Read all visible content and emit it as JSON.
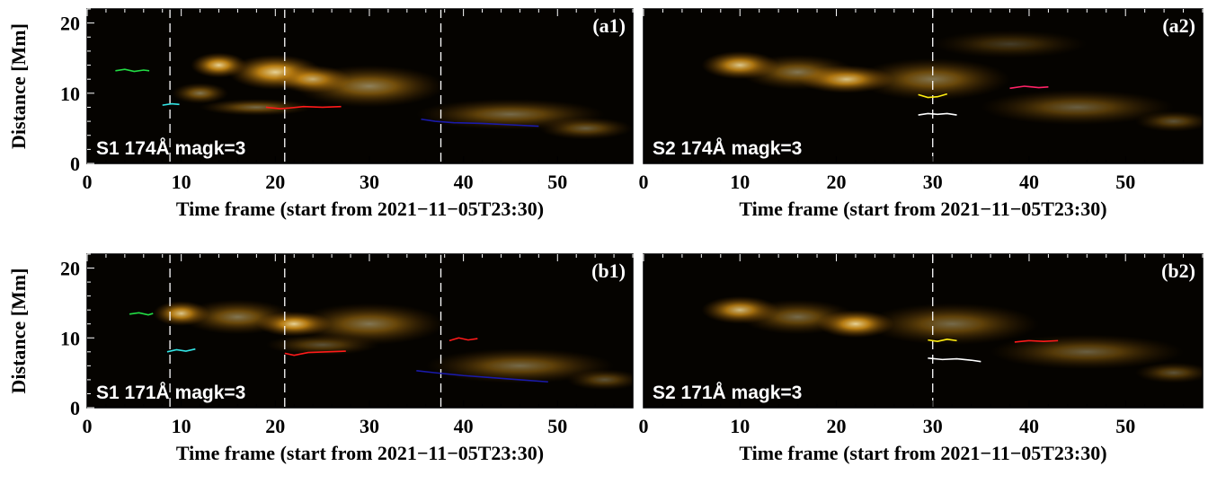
{
  "figure": {
    "ylabel": "Distance [Mm]",
    "xlabel": "Time frame (start from 2021−11−05T23:30)"
  },
  "colors": {
    "green": "#22dd44",
    "cyan": "#33e6e6",
    "red": "#ff1a1a",
    "blue": "#1a1aaa",
    "yellow": "#ffee11",
    "white": "#ffffff",
    "magenta": "#ff2266"
  },
  "chart_data": [
    {
      "type": "heatmap",
      "panel": "(a1)",
      "caption": "S1 174Å magk=3",
      "xlabel": "Time frame (start from 2021−11−05T23:30)",
      "ylabel": "Distance [Mm]",
      "xlim": [
        0,
        58
      ],
      "ylim": [
        0,
        22
      ],
      "xticks": [
        "0",
        "10",
        "20",
        "30",
        "40",
        "50"
      ],
      "yticks": [
        "0",
        "10",
        "20"
      ],
      "vlines": [
        8.8,
        21.0,
        37.6
      ],
      "tracks": [
        {
          "color": "green",
          "x": [
            3.0,
            4.0,
            5.0,
            6.0,
            6.6
          ],
          "y": [
            13.2,
            13.4,
            13.1,
            13.3,
            13.2
          ]
        },
        {
          "color": "cyan",
          "x": [
            8.0,
            9.0,
            9.8
          ],
          "y": [
            8.3,
            8.5,
            8.4
          ]
        },
        {
          "color": "red",
          "x": [
            19.0,
            20.5,
            21.5,
            23.0,
            25.0,
            27.0
          ],
          "y": [
            8.0,
            7.8,
            7.9,
            8.1,
            8.0,
            8.1
          ]
        },
        {
          "color": "blue",
          "x": [
            35.5,
            37.0,
            39.0,
            42.0,
            45.0,
            48.0
          ],
          "y": [
            6.3,
            6.0,
            5.8,
            5.7,
            5.5,
            5.3
          ]
        }
      ]
    },
    {
      "type": "heatmap",
      "panel": "(a2)",
      "caption": "S2 174Å magk=3",
      "xlabel": "Time frame (start from 2021−11−05T23:30)",
      "ylabel": "",
      "xlim": [
        0,
        58
      ],
      "ylim": [
        0,
        22
      ],
      "xticks": [
        "0",
        "10",
        "20",
        "30",
        "40",
        "50"
      ],
      "yticks": [],
      "vlines": [
        30.0
      ],
      "tracks": [
        {
          "color": "yellow",
          "x": [
            28.5,
            29.5,
            30.5,
            31.5
          ],
          "y": [
            9.8,
            9.4,
            9.5,
            9.9
          ]
        },
        {
          "color": "white",
          "x": [
            28.5,
            29.5,
            30.5,
            31.5,
            32.5
          ],
          "y": [
            6.9,
            7.1,
            7.0,
            7.1,
            6.9
          ]
        },
        {
          "color": "magenta",
          "x": [
            38.0,
            39.5,
            41.0,
            42.0
          ],
          "y": [
            10.7,
            11.0,
            10.8,
            10.9
          ]
        }
      ]
    },
    {
      "type": "heatmap",
      "panel": "(b1)",
      "caption": "S1 171Å magk=3",
      "xlabel": "Time frame (start from 2021−11−05T23:30)",
      "ylabel": "Distance [Mm]",
      "xlim": [
        0,
        58
      ],
      "ylim": [
        0,
        22
      ],
      "xticks": [
        "0",
        "10",
        "20",
        "30",
        "40",
        "50"
      ],
      "yticks": [
        "0",
        "10",
        "20"
      ],
      "vlines": [
        8.8,
        21.0,
        37.6
      ],
      "tracks": [
        {
          "color": "green",
          "x": [
            4.5,
            5.5,
            6.5,
            7.0
          ],
          "y": [
            13.4,
            13.6,
            13.3,
            13.5
          ]
        },
        {
          "color": "cyan",
          "x": [
            8.5,
            9.5,
            10.5,
            11.5
          ],
          "y": [
            8.0,
            8.3,
            8.1,
            8.4
          ]
        },
        {
          "color": "red",
          "x": [
            21.0,
            22.0,
            23.5,
            25.5,
            27.5
          ],
          "y": [
            7.8,
            7.5,
            7.9,
            8.0,
            8.1
          ]
        },
        {
          "color": "blue",
          "x": [
            35.0,
            37.0,
            40.0,
            43.0,
            46.0,
            49.0
          ],
          "y": [
            5.3,
            5.0,
            4.6,
            4.3,
            4.0,
            3.7
          ]
        },
        {
          "color": "red",
          "x": [
            38.5,
            39.5,
            40.5,
            41.5
          ],
          "y": [
            9.6,
            10.0,
            9.7,
            9.9
          ]
        }
      ]
    },
    {
      "type": "heatmap",
      "panel": "(b2)",
      "caption": "S2 171Å magk=3",
      "xlabel": "Time frame (start from 2021−11−05T23:30)",
      "ylabel": "",
      "xlim": [
        0,
        58
      ],
      "ylim": [
        0,
        22
      ],
      "xticks": [
        "0",
        "10",
        "20",
        "30",
        "40",
        "50"
      ],
      "yticks": [],
      "vlines": [
        30.0
      ],
      "tracks": [
        {
          "color": "yellow",
          "x": [
            29.5,
            30.5,
            31.5,
            32.5
          ],
          "y": [
            9.7,
            9.5,
            9.8,
            9.6
          ]
        },
        {
          "color": "white",
          "x": [
            29.5,
            31.0,
            32.5,
            34.0,
            35.0
          ],
          "y": [
            7.1,
            6.9,
            7.0,
            6.8,
            6.6
          ]
        },
        {
          "color": "red",
          "x": [
            38.5,
            40.0,
            41.5,
            43.0
          ],
          "y": [
            9.4,
            9.6,
            9.5,
            9.6
          ]
        }
      ]
    }
  ]
}
